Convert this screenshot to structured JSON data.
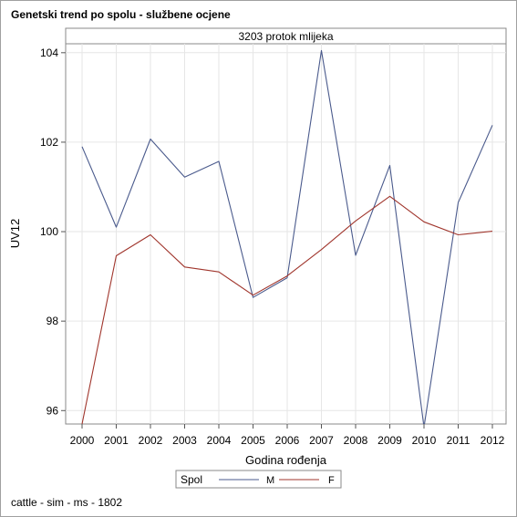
{
  "page": {
    "title": "Genetski trend po spolu - službene ocjene",
    "footnote": "cattle - sim - ms - 1802"
  },
  "colors": {
    "M": "#4a5a8c",
    "F": "#a0352c",
    "grid": "#e6e6e6",
    "axis": "#555555"
  },
  "chart_data": {
    "type": "line",
    "panel_label": "3203 protok mlijeka",
    "xlabel": "Godina rođenja",
    "ylabel": "UV12",
    "x": [
      2000,
      2001,
      2002,
      2003,
      2004,
      2005,
      2006,
      2007,
      2008,
      2009,
      2010,
      2011,
      2012
    ],
    "x_ticks": [
      "2000",
      "2001",
      "2002",
      "2003",
      "2004",
      "2005",
      "2006",
      "2007",
      "2008",
      "2009",
      "2010",
      "2011",
      "2012"
    ],
    "ylim": [
      95.7,
      104.2
    ],
    "y_ticks": [
      96,
      98,
      100,
      102,
      104
    ],
    "grid": true,
    "legend": {
      "title": "Spol",
      "position": "bottom"
    },
    "series": [
      {
        "name": "M",
        "values": [
          101.9,
          100.1,
          102.07,
          101.22,
          101.57,
          98.53,
          98.97,
          104.05,
          99.47,
          101.48,
          95.63,
          100.65,
          102.38
        ]
      },
      {
        "name": "F",
        "values": [
          95.7,
          99.46,
          99.93,
          99.21,
          99.1,
          98.58,
          99.01,
          99.6,
          100.24,
          100.79,
          100.22,
          99.93,
          100.01
        ]
      }
    ]
  }
}
